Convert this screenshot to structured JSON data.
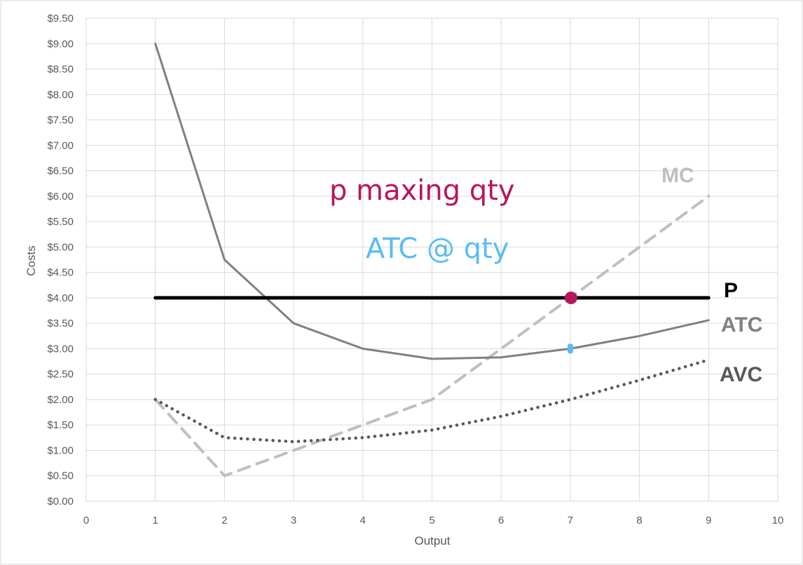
{
  "chart_data": {
    "type": "line",
    "xlabel": "Output",
    "ylabel": "Costs",
    "xlim": [
      0,
      10
    ],
    "ylim": [
      0,
      9.5
    ],
    "x_ticks": [
      "0",
      "1",
      "2",
      "3",
      "4",
      "5",
      "6",
      "7",
      "8",
      "9",
      "10"
    ],
    "y_ticks": [
      "$0.00",
      "$0.50",
      "$1.00",
      "$1.50",
      "$2.00",
      "$2.50",
      "$3.00",
      "$3.50",
      "$4.00",
      "$4.50",
      "$5.00",
      "$5.50",
      "$6.00",
      "$6.50",
      "$7.00",
      "$7.50",
      "$8.00",
      "$8.50",
      "$9.00",
      "$9.50"
    ],
    "grid": true,
    "series": [
      {
        "name": "P",
        "style": "solid",
        "color": "#000000",
        "x": [
          1,
          9
        ],
        "y": [
          4,
          4
        ]
      },
      {
        "name": "ATC",
        "style": "solid",
        "color": "#808080",
        "x": [
          1,
          2,
          3,
          4,
          5,
          6,
          7,
          8,
          9
        ],
        "y": [
          9.0,
          4.75,
          3.5,
          3.0,
          2.8,
          2.83,
          3.0,
          3.25,
          3.56
        ]
      },
      {
        "name": "AVC",
        "style": "dotted",
        "color": "#595959",
        "x": [
          1,
          2,
          3,
          4,
          5,
          6,
          7,
          8,
          9
        ],
        "y": [
          2.0,
          1.25,
          1.17,
          1.25,
          1.4,
          1.67,
          2.0,
          2.38,
          2.78
        ]
      },
      {
        "name": "MC",
        "style": "dashed",
        "color": "#bfbfbf",
        "x": [
          1,
          2,
          3,
          4,
          5,
          6,
          7,
          8,
          9
        ],
        "y": [
          2.0,
          0.5,
          1.0,
          1.5,
          2.0,
          3.0,
          4.0,
          5.0,
          6.0
        ]
      }
    ],
    "annotations": [
      {
        "text": "p maxing qty",
        "color": "#b5175e",
        "marker_x": 7,
        "marker_y": 4.0
      },
      {
        "text": "ATC @ qty",
        "color": "#5bbcf0",
        "marker_x": 7,
        "marker_y": 3.0
      }
    ]
  }
}
